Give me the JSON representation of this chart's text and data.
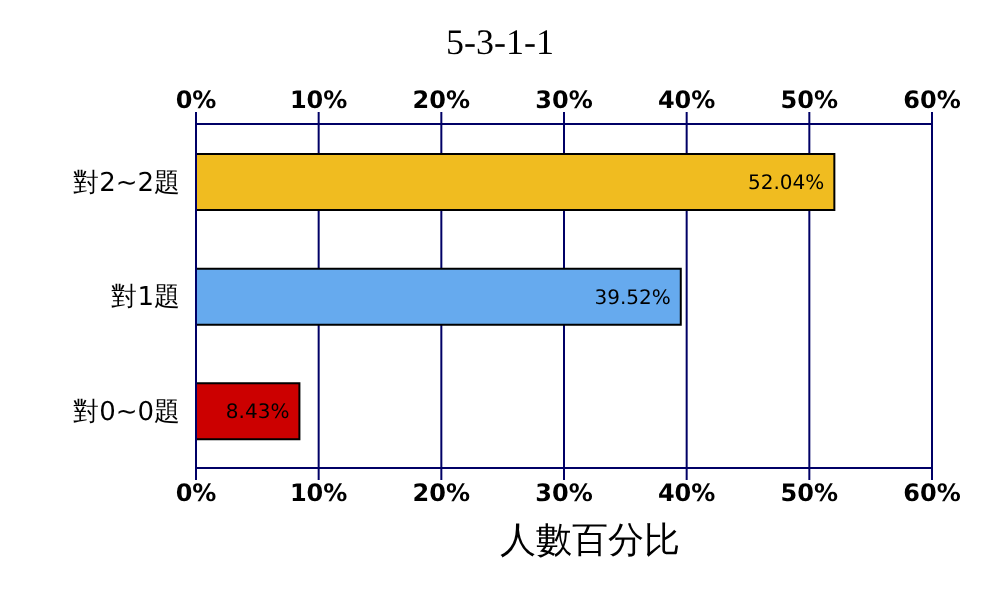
{
  "chart_data": {
    "type": "bar",
    "orientation": "horizontal",
    "title": "5-3-1-1",
    "xlabel": "人數百分比",
    "categories": [
      "對2~2題",
      "對1題",
      "對0~0題"
    ],
    "values": [
      52.04,
      39.52,
      8.43
    ],
    "colors": [
      "#f0bc20",
      "#66aaee",
      "#cc0000"
    ],
    "value_labels": [
      "52.04%",
      "39.52%",
      "8.43%"
    ],
    "xlim": [
      0,
      60
    ],
    "xticks": [
      {
        "value": 0,
        "label": "0%"
      },
      {
        "value": 10,
        "label": "10%"
      },
      {
        "value": 20,
        "label": "20%"
      },
      {
        "value": 30,
        "label": "30%"
      },
      {
        "value": 40,
        "label": "40%"
      },
      {
        "value": 50,
        "label": "50%"
      },
      {
        "value": 60,
        "label": "60%"
      }
    ],
    "x2lim": [
      0,
      60
    ],
    "x2ticks": [
      {
        "value": 0,
        "label": "0%"
      },
      {
        "value": 10,
        "label": "10%"
      },
      {
        "value": 20,
        "label": "20%"
      },
      {
        "value": 30,
        "label": "30%"
      },
      {
        "value": 40,
        "label": "40%"
      },
      {
        "value": 50,
        "label": "50%"
      },
      {
        "value": 60,
        "label": "60%"
      }
    ],
    "grid": "x"
  }
}
